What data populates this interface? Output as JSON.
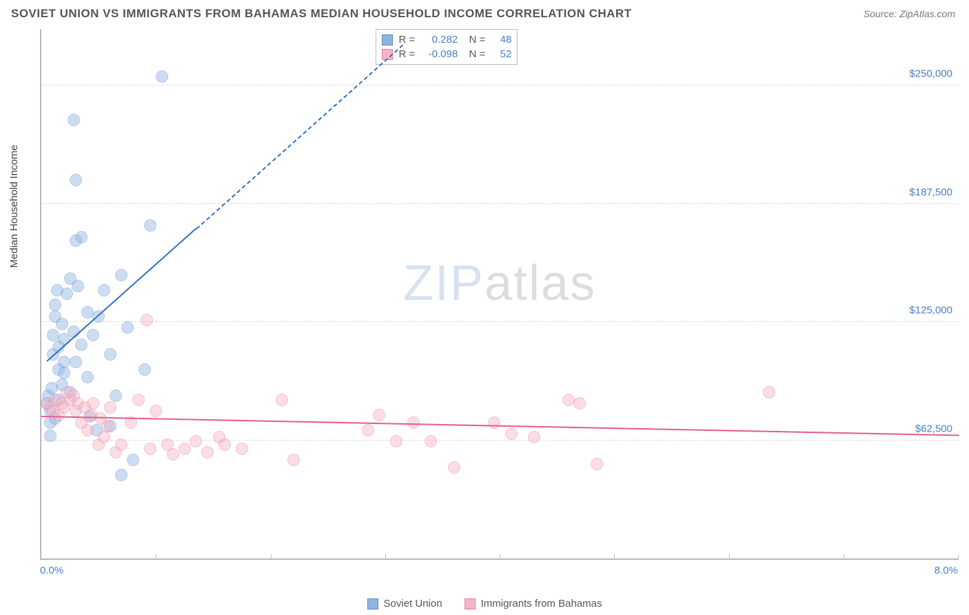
{
  "header": {
    "title": "SOVIET UNION VS IMMIGRANTS FROM BAHAMAS MEDIAN HOUSEHOLD INCOME CORRELATION CHART",
    "source_prefix": "Source: ",
    "source": "ZipAtlas.com"
  },
  "watermark": {
    "part1": "ZIP",
    "part2": "atlas"
  },
  "chart": {
    "type": "scatter",
    "y_axis_title": "Median Household Income",
    "xlim": [
      0,
      8
    ],
    "ylim": [
      0,
      280000
    ],
    "x_label_min": "0.0%",
    "x_label_max": "8.0%",
    "x_ticks": [
      0,
      1,
      2,
      3,
      4,
      5,
      6,
      7,
      8
    ],
    "y_gridlines": [
      {
        "value": 62500,
        "label": "$62,500"
      },
      {
        "value": 125000,
        "label": "$125,000"
      },
      {
        "value": 187500,
        "label": "$187,500"
      },
      {
        "value": 250000,
        "label": "$250,000"
      }
    ],
    "background_color": "#ffffff",
    "grid_color": "#d9d9d9",
    "axis_color": "#b9b9b9",
    "tick_label_color": "#4a7ec9",
    "marker_radius": 9,
    "marker_opacity": 0.45,
    "series": [
      {
        "name": "Soviet Union",
        "fill": "#8fb4e3",
        "stroke": "#5a8cc8",
        "trend_color": "#2f6fc0",
        "R": "0.282",
        "N": "48",
        "trend": {
          "x1": 0.05,
          "y1": 105000,
          "x2": 1.35,
          "y2": 175000,
          "dash_to_x": 3.15,
          "dash_to_y": 272000
        },
        "points": [
          [
            0.05,
            82000
          ],
          [
            0.06,
            86000
          ],
          [
            0.08,
            72000
          ],
          [
            0.08,
            78000
          ],
          [
            0.09,
            90000
          ],
          [
            0.1,
            108000
          ],
          [
            0.1,
            118000
          ],
          [
            0.12,
            128000
          ],
          [
            0.12,
            134000
          ],
          [
            0.14,
            142000
          ],
          [
            0.15,
            100000
          ],
          [
            0.15,
            112000
          ],
          [
            0.18,
            124000
          ],
          [
            0.2,
            98000
          ],
          [
            0.2,
            116000
          ],
          [
            0.22,
            140000
          ],
          [
            0.25,
            88000
          ],
          [
            0.25,
            148000
          ],
          [
            0.28,
            120000
          ],
          [
            0.3,
            104000
          ],
          [
            0.32,
            144000
          ],
          [
            0.35,
            113000
          ],
          [
            0.35,
            170000
          ],
          [
            0.4,
            96000
          ],
          [
            0.4,
            130000
          ],
          [
            0.45,
            118000
          ],
          [
            0.5,
            128000
          ],
          [
            0.55,
            142000
          ],
          [
            0.6,
            108000
          ],
          [
            0.65,
            86000
          ],
          [
            0.7,
            150000
          ],
          [
            0.75,
            122000
          ],
          [
            0.8,
            52000
          ],
          [
            0.9,
            100000
          ],
          [
            0.95,
            176000
          ],
          [
            1.05,
            255000
          ],
          [
            0.3,
            168000
          ],
          [
            0.28,
            232000
          ],
          [
            0.3,
            200000
          ],
          [
            0.12,
            74000
          ],
          [
            0.08,
            65000
          ],
          [
            0.42,
            75000
          ],
          [
            0.48,
            68000
          ],
          [
            0.6,
            70000
          ],
          [
            0.7,
            44000
          ],
          [
            0.15,
            84000
          ],
          [
            0.18,
            92000
          ],
          [
            0.2,
            104000
          ]
        ]
      },
      {
        "name": "Immigrants from Bahamas",
        "fill": "#f4b4c6",
        "stroke": "#e77fa1",
        "trend_color": "#e65a8a",
        "R": "-0.098",
        "N": "52",
        "trend": {
          "x1": 0.0,
          "y1": 76000,
          "x2": 8.0,
          "y2": 66000
        },
        "points": [
          [
            0.05,
            82000
          ],
          [
            0.08,
            80000
          ],
          [
            0.1,
            78000
          ],
          [
            0.12,
            84000
          ],
          [
            0.15,
            76000
          ],
          [
            0.18,
            82000
          ],
          [
            0.2,
            80000
          ],
          [
            0.25,
            84000
          ],
          [
            0.3,
            78000
          ],
          [
            0.35,
            72000
          ],
          [
            0.4,
            68000
          ],
          [
            0.45,
            82000
          ],
          [
            0.5,
            60000
          ],
          [
            0.55,
            64000
          ],
          [
            0.6,
            80000
          ],
          [
            0.65,
            56000
          ],
          [
            0.7,
            60000
          ],
          [
            0.78,
            72000
          ],
          [
            0.85,
            84000
          ],
          [
            0.92,
            126000
          ],
          [
            0.95,
            58000
          ],
          [
            1.0,
            78000
          ],
          [
            1.1,
            60000
          ],
          [
            1.15,
            55000
          ],
          [
            1.25,
            58000
          ],
          [
            1.35,
            62000
          ],
          [
            1.45,
            56000
          ],
          [
            1.55,
            64000
          ],
          [
            1.6,
            60000
          ],
          [
            1.75,
            58000
          ],
          [
            2.1,
            84000
          ],
          [
            2.2,
            52000
          ],
          [
            2.85,
            68000
          ],
          [
            2.95,
            76000
          ],
          [
            3.1,
            62000
          ],
          [
            3.25,
            72000
          ],
          [
            3.4,
            62000
          ],
          [
            3.6,
            48000
          ],
          [
            3.95,
            72000
          ],
          [
            4.1,
            66000
          ],
          [
            4.3,
            64000
          ],
          [
            4.6,
            84000
          ],
          [
            4.7,
            82000
          ],
          [
            4.85,
            50000
          ],
          [
            6.35,
            88000
          ],
          [
            0.22,
            88000
          ],
          [
            0.28,
            86000
          ],
          [
            0.32,
            82000
          ],
          [
            0.38,
            80000
          ],
          [
            0.44,
            76000
          ],
          [
            0.52,
            74000
          ],
          [
            0.58,
            70000
          ]
        ]
      }
    ]
  },
  "legend": {
    "items": [
      {
        "label": "Soviet Union",
        "fill": "#8fb4e3",
        "stroke": "#5a8cc8"
      },
      {
        "label": "Immigrants from Bahamas",
        "fill": "#f4b4c6",
        "stroke": "#e77fa1"
      }
    ]
  }
}
